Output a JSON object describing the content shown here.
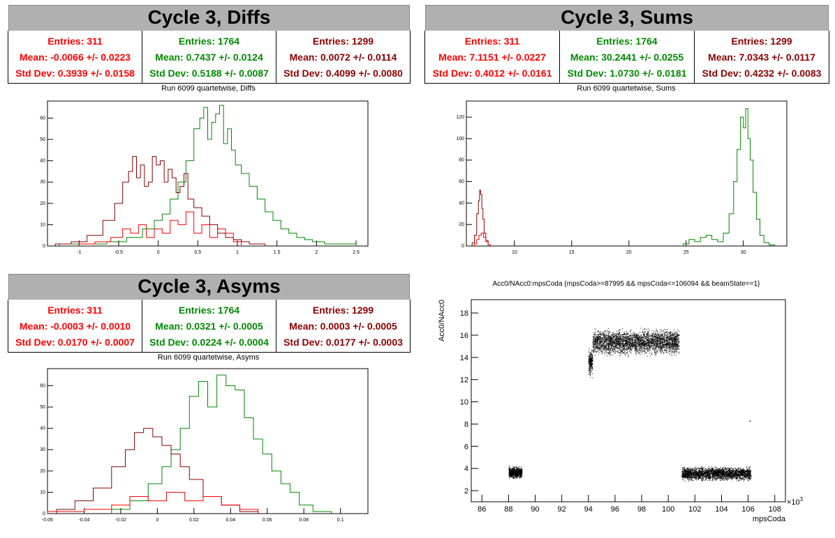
{
  "colors": {
    "red": "#ff0000",
    "green": "#008800",
    "darkred": "#880000"
  },
  "panels": {
    "diffs": {
      "header": "Cycle 3, Diffs",
      "plot_title": "Run 6099 quartetwise, Diffs",
      "stats": [
        {
          "entries": "Entries: 311",
          "mean": "Mean: -0.0066 +/- 0.0223",
          "std": "Std Dev: 0.3939 +/- 0.0158"
        },
        {
          "entries": "Entries: 1764",
          "mean": "Mean: 0.7437 +/- 0.0124",
          "std": "Std Dev: 0.5188 +/- 0.0087"
        },
        {
          "entries": "Entries: 1299",
          "mean": "Mean: 0.0072 +/- 0.0114",
          "std": "Std Dev: 0.4099 +/- 0.0080"
        }
      ]
    },
    "sums": {
      "header": "Cycle 3, Sums",
      "plot_title": "Run 6099 quartetwise, Sums",
      "stats": [
        {
          "entries": "Entries: 311",
          "mean": "Mean: 7.1151 +/- 0.0227",
          "std": "Std Dev: 0.4012 +/- 0.0161"
        },
        {
          "entries": "Entries: 1764",
          "mean": "Mean: 30.2441 +/- 0.0255",
          "std": "Std Dev: 1.0730 +/- 0.0181"
        },
        {
          "entries": "Entries: 1299",
          "mean": "Mean: 7.0343 +/- 0.0117",
          "std": "Std Dev: 0.4232 +/- 0.0083"
        }
      ]
    },
    "asyms": {
      "header": "Cycle 3, Asyms",
      "plot_title": "Run 6099 quartetwise, Asyms",
      "stats": [
        {
          "entries": "Entries: 311",
          "mean": "Mean: -0.0003 +/- 0.0010",
          "std": "Std Dev: 0.0170 +/- 0.0007"
        },
        {
          "entries": "Entries: 1764",
          "mean": "Mean: 0.0321 +/- 0.0005",
          "std": "Std Dev: 0.0224 +/- 0.0004"
        },
        {
          "entries": "Entries: 1299",
          "mean": "Mean: 0.0003 +/- 0.0005",
          "std": "Std Dev: 0.0177 +/- 0.0003"
        }
      ]
    },
    "scatter": {
      "plot_title": "Acc0/NAcc0:mpsCoda {mpsCoda>=87995 && mpsCoda<=106094 && beamState==1}"
    }
  },
  "chart_data": [
    {
      "type": "histogram",
      "title": "Run 6099 quartetwise, Diffs",
      "xlim": [
        -1.4,
        2.65
      ],
      "ylim": [
        0,
        68
      ],
      "xticks": [
        "-1",
        "-0.5",
        "0",
        "0.5",
        "1",
        "1.5",
        "2",
        "2.5"
      ],
      "xtick_values": [
        -1,
        -0.5,
        0,
        0.5,
        1,
        1.5,
        2,
        2.5
      ],
      "yticks": [
        "0",
        "10",
        "20",
        "30",
        "40",
        "50",
        "60"
      ],
      "series": [
        {
          "color": "green",
          "centers": [
            -1.1,
            -0.8,
            -0.5,
            -0.3,
            -0.1,
            0.0,
            0.1,
            0.2,
            0.3,
            0.4,
            0.5,
            0.55,
            0.6,
            0.65,
            0.7,
            0.75,
            0.8,
            0.85,
            0.9,
            0.95,
            1.0,
            1.1,
            1.2,
            1.3,
            1.4,
            1.5,
            1.6,
            1.7,
            1.8,
            1.9,
            2.0,
            2.2,
            2.4
          ],
          "counts": [
            1,
            1,
            2,
            4,
            8,
            12,
            15,
            22,
            30,
            40,
            55,
            60,
            65,
            50,
            58,
            62,
            66,
            48,
            55,
            45,
            38,
            34,
            28,
            22,
            16,
            12,
            8,
            6,
            4,
            3,
            2,
            1,
            1
          ]
        },
        {
          "color": "darkred",
          "centers": [
            -1.2,
            -1.0,
            -0.8,
            -0.6,
            -0.5,
            -0.4,
            -0.35,
            -0.3,
            -0.25,
            -0.2,
            -0.15,
            -0.1,
            -0.05,
            0.0,
            0.05,
            0.1,
            0.15,
            0.2,
            0.25,
            0.3,
            0.35,
            0.4,
            0.5,
            0.6,
            0.7,
            0.8,
            0.9,
            1.0,
            1.1,
            1.2,
            1.3
          ],
          "counts": [
            1,
            2,
            5,
            12,
            20,
            30,
            35,
            42,
            32,
            38,
            28,
            30,
            42,
            38,
            40,
            30,
            36,
            32,
            25,
            28,
            34,
            22,
            18,
            14,
            10,
            6,
            4,
            3,
            2,
            1,
            1
          ]
        },
        {
          "color": "red",
          "centers": [
            -0.9,
            -0.7,
            -0.5,
            -0.4,
            -0.3,
            -0.2,
            -0.1,
            0.0,
            0.1,
            0.2,
            0.3,
            0.4,
            0.5,
            0.6,
            0.7,
            0.8,
            0.9,
            1.0
          ],
          "counts": [
            1,
            2,
            4,
            8,
            6,
            10,
            4,
            8,
            6,
            12,
            10,
            16,
            6,
            10,
            4,
            8,
            6,
            2
          ]
        }
      ]
    },
    {
      "type": "histogram",
      "title": "Run 6099 quartetwise, Sums",
      "xlim": [
        5.8,
        33.8
      ],
      "ylim": [
        0,
        135
      ],
      "xticks": [
        "10",
        "15",
        "20",
        "25",
        "30"
      ],
      "xtick_values": [
        10,
        15,
        20,
        25,
        30
      ],
      "yticks": [
        "0",
        "20",
        "40",
        "60",
        "80",
        "100",
        "120"
      ],
      "series": [
        {
          "color": "darkred",
          "centers": [
            6.4,
            6.6,
            6.8,
            6.9,
            7.0,
            7.1,
            7.2,
            7.3,
            7.4,
            7.6,
            7.8
          ],
          "counts": [
            3,
            10,
            30,
            42,
            52,
            48,
            35,
            25,
            12,
            5,
            1
          ]
        },
        {
          "color": "red",
          "centers": [
            6.6,
            6.8,
            7.0,
            7.2,
            7.4,
            7.6,
            7.8
          ],
          "counts": [
            2,
            6,
            10,
            12,
            8,
            4,
            1
          ]
        },
        {
          "color": "green",
          "centers": [
            25.0,
            25.5,
            26.0,
            26.5,
            27.0,
            27.5,
            28.0,
            28.5,
            29.0,
            29.3,
            29.6,
            29.9,
            30.1,
            30.3,
            30.5,
            30.7,
            31.0,
            31.3,
            31.6,
            32.0,
            32.5
          ],
          "counts": [
            2,
            6,
            4,
            8,
            10,
            6,
            4,
            12,
            30,
            60,
            90,
            120,
            110,
            128,
            100,
            80,
            50,
            25,
            10,
            3,
            1
          ]
        }
      ]
    },
    {
      "type": "histogram",
      "title": "Run 6099 quartetwise, Asyms",
      "xlim": [
        -0.06,
        0.115
      ],
      "ylim": [
        0,
        68
      ],
      "xticks": [
        "-0.06",
        "-0.04",
        "-0.02",
        "0",
        "0.02",
        "0.04",
        "0.06",
        "0.08",
        "0.1"
      ],
      "xtick_values": [
        -0.06,
        -0.04,
        -0.02,
        0,
        0.02,
        0.04,
        0.06,
        0.08,
        0.1
      ],
      "yticks": [
        "0",
        "10",
        "20",
        "30",
        "40",
        "50",
        "60"
      ],
      "series": [
        {
          "color": "green",
          "centers": [
            -0.02,
            -0.01,
            0.0,
            0.005,
            0.01,
            0.015,
            0.02,
            0.025,
            0.03,
            0.035,
            0.04,
            0.045,
            0.05,
            0.055,
            0.06,
            0.065,
            0.07,
            0.075,
            0.08,
            0.09
          ],
          "counts": [
            2,
            6,
            14,
            22,
            30,
            40,
            55,
            62,
            50,
            65,
            60,
            58,
            45,
            35,
            28,
            20,
            14,
            10,
            4,
            1
          ]
        },
        {
          "color": "darkred",
          "centers": [
            -0.05,
            -0.04,
            -0.03,
            -0.02,
            -0.015,
            -0.01,
            -0.005,
            0.0,
            0.005,
            0.01,
            0.015,
            0.02,
            0.03,
            0.04,
            0.05
          ],
          "counts": [
            2,
            6,
            12,
            22,
            30,
            38,
            40,
            36,
            32,
            28,
            22,
            16,
            8,
            4,
            1
          ]
        },
        {
          "color": "red",
          "centers": [
            -0.05,
            -0.03,
            -0.02,
            -0.01,
            0.0,
            0.01,
            0.02,
            0.03,
            0.04,
            0.05
          ],
          "counts": [
            1,
            2,
            4,
            8,
            6,
            10,
            6,
            8,
            4,
            2
          ]
        }
      ]
    },
    {
      "type": "scatter",
      "title": "Acc0/NAcc0:mpsCoda {mpsCoda>=87995 && mpsCoda<=106094 && beamState==1}",
      "xlabel": "mpsCoda",
      "ylabel": "Acc0/NAcc0",
      "x_multiplier": "×10",
      "x_multiplier_exp": "3",
      "xlim": [
        85.2,
        108.8
      ],
      "ylim": [
        1.0,
        19.2
      ],
      "xticks": [
        "86",
        "88",
        "90",
        "92",
        "94",
        "96",
        "98",
        "100",
        "102",
        "104",
        "106",
        "108"
      ],
      "xtick_values": [
        86,
        88,
        90,
        92,
        94,
        96,
        98,
        100,
        102,
        104,
        106,
        108
      ],
      "yticks": [
        "2",
        "4",
        "6",
        "8",
        "10",
        "12",
        "14",
        "16",
        "18"
      ],
      "ytick_values": [
        2,
        4,
        6,
        8,
        10,
        12,
        14,
        16,
        18
      ],
      "clusters": [
        {
          "x": [
            88.0,
            89.0
          ],
          "y": [
            3.0,
            4.3
          ],
          "count": 700
        },
        {
          "x": [
            94.0,
            94.3
          ],
          "y": [
            12.0,
            15.0
          ],
          "count": 250
        },
        {
          "x": [
            94.3,
            100.8
          ],
          "y": [
            14.0,
            16.8
          ],
          "count": 3200
        },
        {
          "x": [
            101.0,
            106.2
          ],
          "y": [
            2.8,
            4.3
          ],
          "count": 2600
        }
      ]
    }
  ]
}
